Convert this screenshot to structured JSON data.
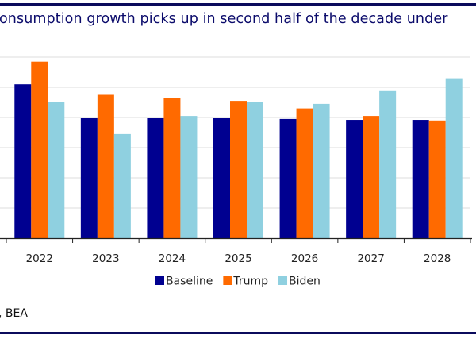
{
  "title": "onsumption growth picks up in second half of the decade under",
  "source": ", BEA",
  "chart_data": {
    "type": "bar",
    "title": "onsumption growth picks up in second half of the decade under",
    "xlabel": "",
    "ylabel": "",
    "categories": [
      "2022",
      "2023",
      "2024",
      "2025",
      "2026",
      "2027",
      "2028"
    ],
    "series": [
      {
        "name": "Baseline",
        "color": "#000090",
        "values": [
          5.1,
          4.0,
          4.0,
          4.0,
          3.95,
          3.92,
          3.92
        ]
      },
      {
        "name": "Trump",
        "color": "#ff6a00",
        "values": [
          5.85,
          4.75,
          4.65,
          4.55,
          4.3,
          4.05,
          3.9
        ]
      },
      {
        "name": "Biden",
        "color": "#8fd0e0",
        "values": [
          4.5,
          3.45,
          4.05,
          4.5,
          4.45,
          4.9,
          5.3
        ]
      }
    ],
    "ylim": [
      0,
      6
    ],
    "gridlines": true,
    "legend_position": "bottom-center"
  }
}
